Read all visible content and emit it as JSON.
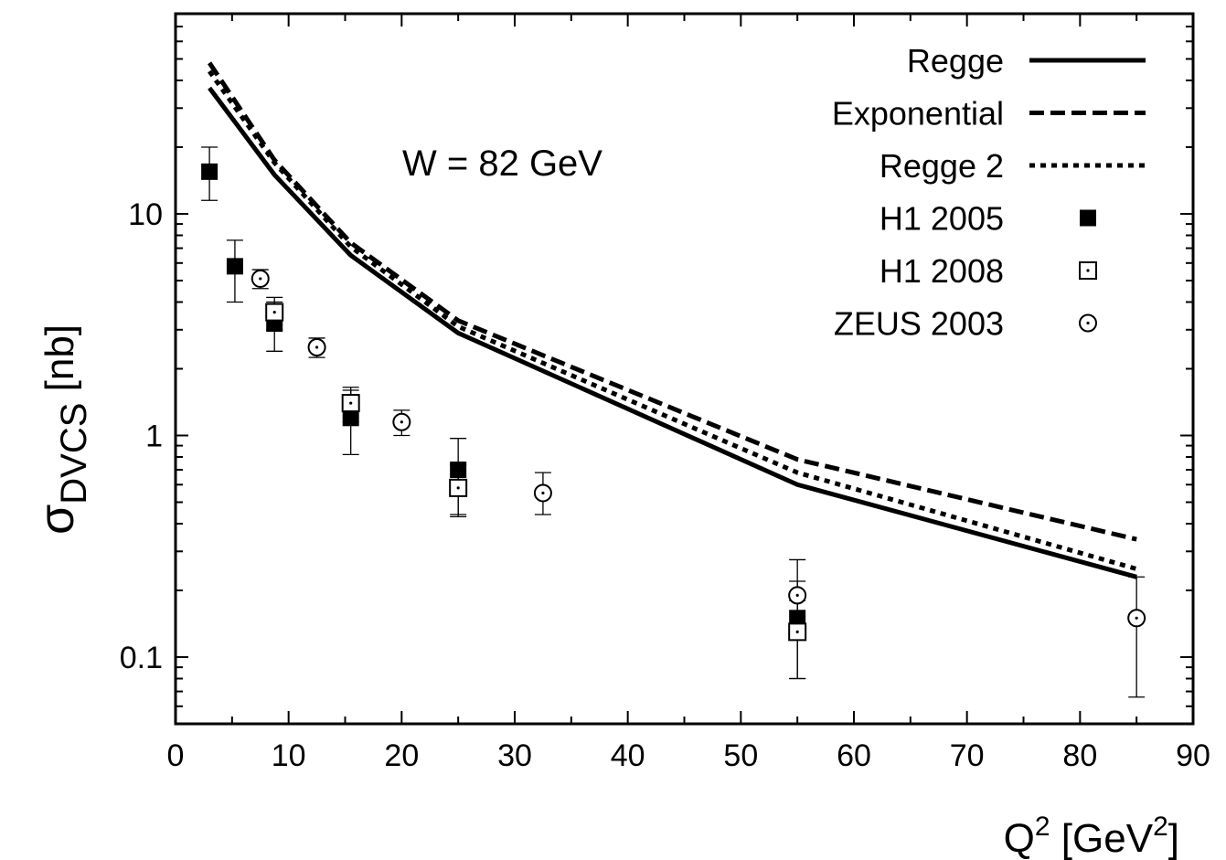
{
  "chart_data": {
    "type": "scatter",
    "xlabel": "Q2 [GeV2]",
    "ylabel": "σDVCS [nb]",
    "xlim": [
      0,
      90
    ],
    "ylim": [
      0.05,
      80
    ],
    "yscale": "log",
    "grid": false,
    "legend_position": "top-right",
    "annotation": "W = 82 GeV",
    "x_ticks": [
      "0",
      "10",
      "20",
      "30",
      "40",
      "50",
      "60",
      "70",
      "80",
      "90"
    ],
    "y_ticks": [
      "0.1",
      "1",
      "10"
    ],
    "lines": [
      {
        "name": "Regge",
        "style": "solid",
        "x": [
          3,
          8.75,
          15.5,
          25,
          55,
          85
        ],
        "y": [
          37,
          15,
          6.5,
          2.9,
          0.6,
          0.23
        ]
      },
      {
        "name": "Exponential",
        "style": "dashed",
        "x": [
          3,
          8.75,
          15.5,
          25,
          55,
          85
        ],
        "y": [
          48,
          17.5,
          7.4,
          3.3,
          0.78,
          0.34
        ]
      },
      {
        "name": "Regge 2",
        "style": "dotted",
        "x": [
          3,
          8.75,
          15.5,
          25,
          55,
          85
        ],
        "y": [
          44,
          17,
          7.1,
          3.1,
          0.68,
          0.25
        ]
      }
    ],
    "points": [
      {
        "name": "H1 2005",
        "marker": "filled-square",
        "x": [
          3,
          5.25,
          8.75,
          15.5,
          25,
          55
        ],
        "y": [
          15.5,
          5.8,
          3.2,
          1.2,
          0.7,
          0.15
        ],
        "err_lo": [
          11.5,
          4.0,
          2.4,
          0.82,
          0.44,
          0.08
        ],
        "err_hi": [
          20,
          7.6,
          4.0,
          1.6,
          0.97,
          0.22
        ]
      },
      {
        "name": "H1 2008",
        "marker": "open-square-dot",
        "x": [
          8.75,
          15.5,
          25,
          55
        ],
        "y": [
          3.6,
          1.4,
          0.58,
          0.13
        ],
        "err_lo": [
          3.0,
          1.15,
          0.43,
          0.08
        ],
        "err_hi": [
          4.2,
          1.65,
          0.74,
          0.18
        ]
      },
      {
        "name": "ZEUS 2003",
        "marker": "open-circle-dot",
        "x": [
          7.5,
          12.5,
          20,
          32.5,
          55,
          85
        ],
        "y": [
          5.1,
          2.5,
          1.15,
          0.55,
          0.19,
          0.15
        ],
        "err_lo": [
          4.6,
          2.25,
          1.0,
          0.44,
          0.12,
          0.066
        ],
        "err_hi": [
          5.6,
          2.75,
          1.3,
          0.68,
          0.275,
          0.23
        ]
      }
    ]
  }
}
